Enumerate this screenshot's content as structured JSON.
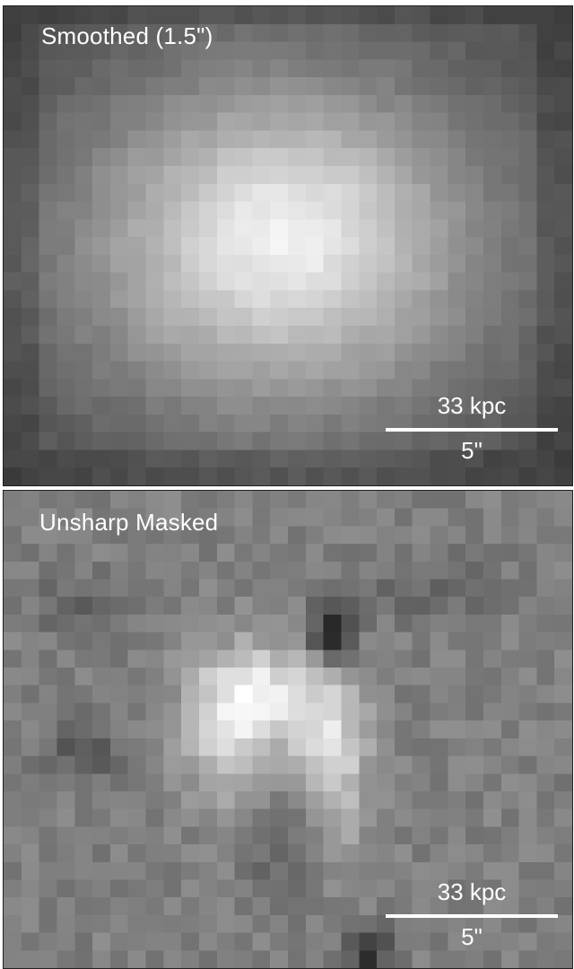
{
  "panels": [
    {
      "label": "Smoothed (1.5\")",
      "scale_physical": "33 kpc",
      "scale_angular": "5\""
    },
    {
      "label": "Unsharp Masked",
      "scale_physical": "33 kpc",
      "scale_angular": "5\""
    }
  ]
}
